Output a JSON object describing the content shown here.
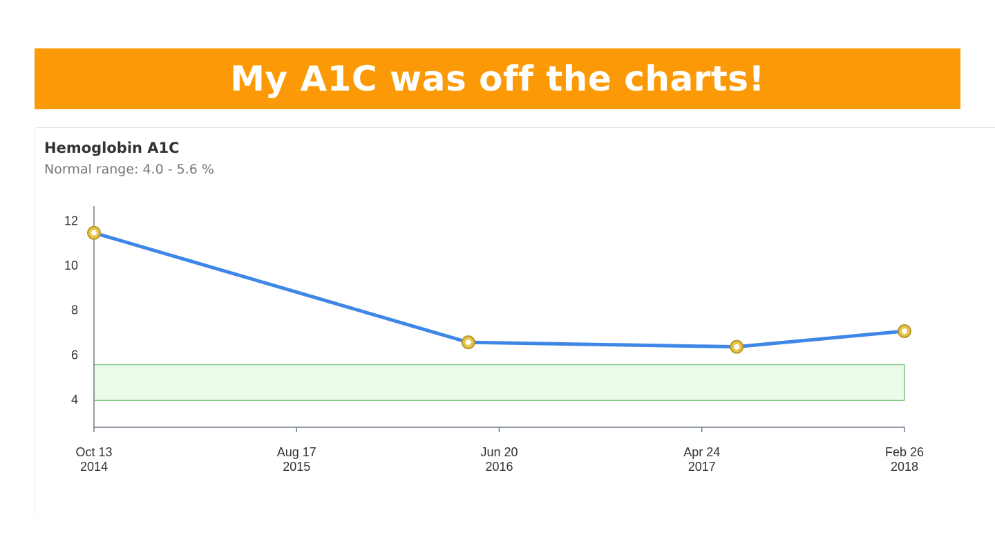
{
  "banner": {
    "title": "My A1C was off the charts!"
  },
  "chart_data": {
    "type": "line",
    "title": "Hemoglobin A1C",
    "subtitle": "Normal range: 4.0 - 5.6 %",
    "x": [
      "2014-10-13",
      "2016-05-04",
      "2017-06-16",
      "2018-02-26"
    ],
    "values": [
      11.5,
      6.6,
      6.4,
      7.1
    ],
    "color": "#3f87e6",
    "marker_color": "#e6c54a",
    "normal_range": [
      4.0,
      5.6
    ],
    "normal_range_color": "#ecfaea",
    "xlim": [
      "2014-10-13",
      "2018-02-26"
    ],
    "xticks": [
      {
        "value": "2014-10-13",
        "label": "Oct 13\n2014"
      },
      {
        "value": "2015-08-17",
        "label": "Aug 17\n2015"
      },
      {
        "value": "2016-06-20",
        "label": "Jun 20\n2016"
      },
      {
        "value": "2017-04-24",
        "label": "Apr 24\n2017"
      },
      {
        "value": "2018-02-26",
        "label": "Feb 26\n2018"
      }
    ],
    "ylim": [
      2.8,
      12.7
    ],
    "yticks": [
      4,
      6,
      8,
      10,
      12
    ]
  }
}
